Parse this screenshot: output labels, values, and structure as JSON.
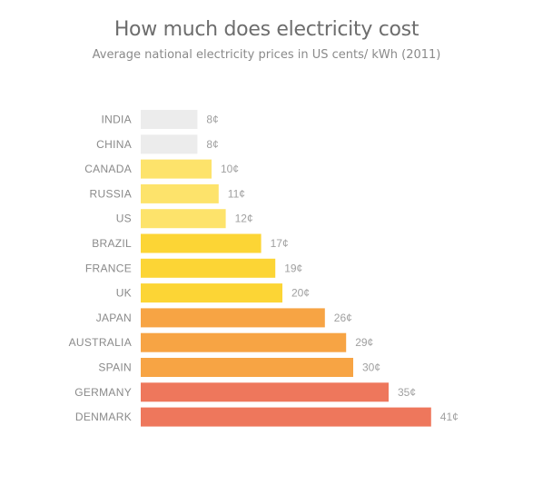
{
  "chart_data": {
    "type": "bar",
    "orientation": "horizontal",
    "title": "How much does electricity cost",
    "subtitle": "Average national electricity prices in US cents/ kWh (2011)",
    "categories": [
      "INDIA",
      "CHINA",
      "CANADA",
      "RUSSIA",
      "US",
      "BRAZIL",
      "FRANCE",
      "UK",
      "JAPAN",
      "AUSTRALIA",
      "SPAIN",
      "GERMANY",
      "DENMARK"
    ],
    "values": [
      8,
      8,
      10,
      11,
      12,
      17,
      19,
      20,
      26,
      29,
      30,
      35,
      41
    ],
    "value_labels": [
      "8¢",
      "8¢",
      "10¢",
      "11¢",
      "12¢",
      "17¢",
      "19¢",
      "20¢",
      "26¢",
      "29¢",
      "30¢",
      "35¢",
      "41¢"
    ],
    "colors": [
      "#ececec",
      "#ececec",
      "#fde36b",
      "#fde36b",
      "#fde36b",
      "#fcd535",
      "#fcd535",
      "#fcd535",
      "#f7a444",
      "#f7a444",
      "#f7a444",
      "#ee775c",
      "#ee775c"
    ],
    "xlim": [
      0,
      41
    ],
    "grid": false,
    "legend": "none"
  }
}
